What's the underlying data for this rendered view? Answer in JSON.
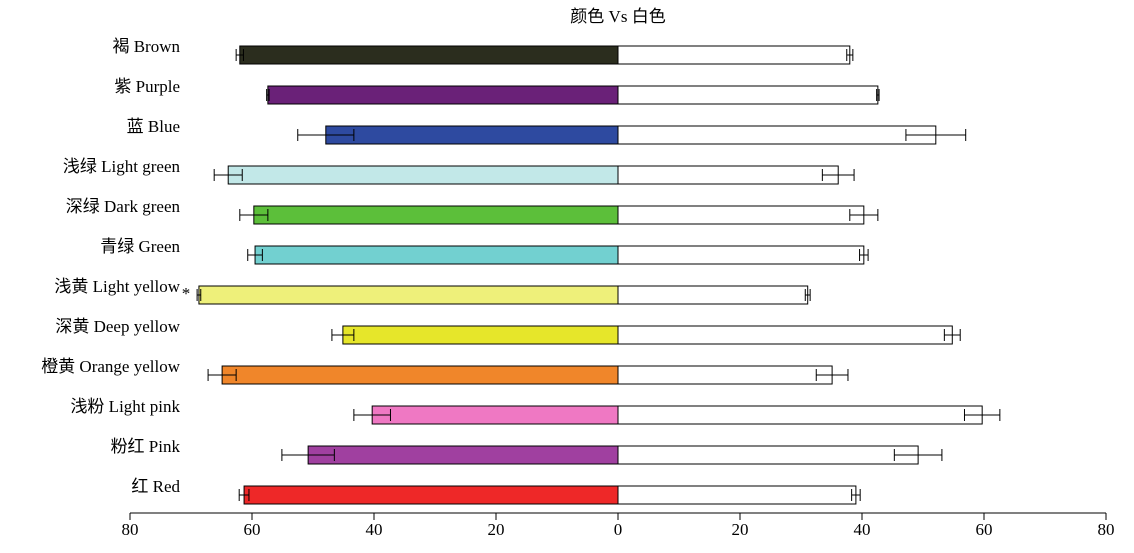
{
  "chart_data": {
    "type": "diverging-bar",
    "title": "颜色 Vs 白色",
    "categories": [
      "褐 Brown",
      "紫 Purple",
      "蓝 Blue",
      "浅绿 Light green",
      "深绿 Dark green",
      "青绿 Green",
      "浅黄 Light yellow",
      "深黄 Deep yellow",
      "橙黄 Orange yellow",
      "浅粉 Light pink",
      "粉红 Pink",
      "红 Red"
    ],
    "significance": [
      null,
      null,
      null,
      null,
      null,
      null,
      "*",
      null,
      null,
      null,
      null,
      null
    ],
    "series": [
      {
        "colors": [
          "#2b2d1e",
          "#6a2178",
          "#2e4aa0",
          "#c2e8e8",
          "#5cbf3a",
          "#72d0d0",
          "#eef07a",
          "#e6e62a",
          "#f0862a",
          "#ef78c3",
          "#a040a0",
          "#ee2828"
        ],
        "values": [
          -62.0,
          -57.4,
          -47.9,
          -63.9,
          -59.7,
          -59.5,
          -68.7,
          -45.1,
          -64.9,
          -40.3,
          -50.8,
          -61.3
        ],
        "errors": [
          0.6,
          0.2,
          4.6,
          2.3,
          2.3,
          1.2,
          0.3,
          1.8,
          2.3,
          3.0,
          4.3,
          0.8
        ]
      },
      {
        "color": "#ffffff",
        "values": [
          38.0,
          42.6,
          52.1,
          36.1,
          40.3,
          40.3,
          31.1,
          54.8,
          35.1,
          59.7,
          49.2,
          39.0
        ],
        "errors": [
          0.5,
          0.2,
          4.9,
          2.6,
          2.3,
          0.7,
          0.4,
          1.3,
          2.6,
          2.9,
          3.9,
          0.7
        ]
      }
    ],
    "xlim": [
      -80,
      80
    ],
    "xticks": [
      {
        "value": -80,
        "label": "80"
      },
      {
        "value": -60,
        "label": "60"
      },
      {
        "value": -40,
        "label": "40"
      },
      {
        "value": -20,
        "label": "20"
      },
      0,
      20,
      40,
      60,
      80
    ]
  }
}
